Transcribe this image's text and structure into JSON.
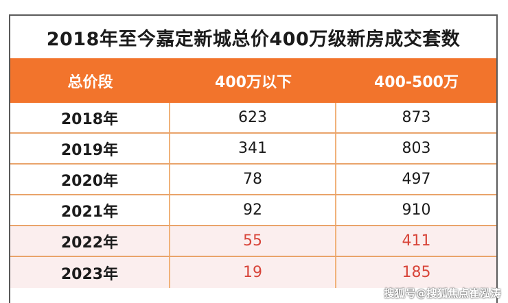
{
  "table": {
    "title": "2018年至今嘉定新城总价400万级新房成交套数",
    "headers": [
      "总价段",
      "400万以下",
      "400-500万"
    ],
    "rows": [
      {
        "year": "2018年",
        "under400": "623",
        "range400_500": "873",
        "highlight": false
      },
      {
        "year": "2019年",
        "under400": "341",
        "range400_500": "803",
        "highlight": false
      },
      {
        "year": "2020年",
        "under400": "78",
        "range400_500": "497",
        "highlight": false
      },
      {
        "year": "2021年",
        "under400": "92",
        "range400_500": "910",
        "highlight": false
      },
      {
        "year": "2022年",
        "under400": "55",
        "range400_500": "411",
        "highlight": true
      },
      {
        "year": "2023年",
        "under400": "19",
        "range400_500": "185",
        "highlight": true
      }
    ]
  },
  "colors": {
    "header_bg": "#f2742c",
    "highlight_text": "#d8453a",
    "highlight_bg": "#fbeeee"
  },
  "watermark": "搜狐号@搜狐焦点崔泓涛"
}
